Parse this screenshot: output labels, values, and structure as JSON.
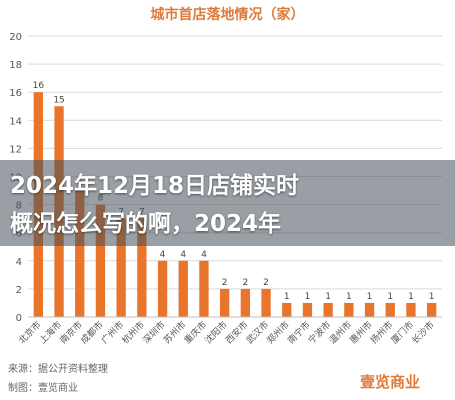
{
  "chart_data": {
    "type": "bar",
    "title": "城市首店落地情况（家）",
    "categories": [
      "北京市",
      "上海市",
      "南京市",
      "成都市",
      "广州市",
      "杭州市",
      "深圳市",
      "苏州市",
      "重庆市",
      "沈阳市",
      "西安市",
      "武汉市",
      "郑州市",
      "南宁市",
      "宁波市",
      "温州市",
      "惠州市",
      "扬州市",
      "厦门市",
      "长沙市"
    ],
    "values": [
      16,
      15,
      9,
      8,
      7,
      7,
      4,
      4,
      4,
      2,
      2,
      2,
      1,
      1,
      1,
      1,
      1,
      1,
      1,
      1
    ],
    "ylim": [
      0,
      20
    ],
    "yticks": [
      0,
      2,
      4,
      6,
      8,
      10,
      12,
      14,
      16,
      18,
      20
    ],
    "grid": true,
    "bar_color": "#e8752b"
  },
  "overlay": {
    "line1": "2024年12月18日店铺实时",
    "line2": "概况怎么写的啊，2024年"
  },
  "source": {
    "line1": "来源：据公开资料整理",
    "line2": "制图：壹览商业"
  },
  "brand": "壹览商业"
}
